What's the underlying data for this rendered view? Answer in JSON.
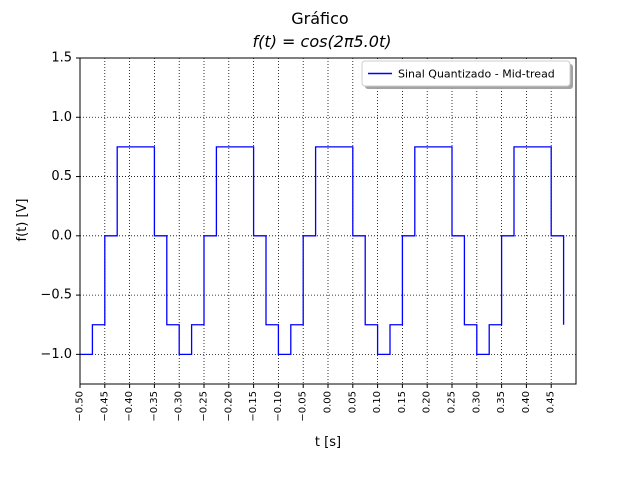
{
  "chart_data": {
    "type": "line",
    "title": "Gráfico",
    "subtitle": "f(t) = cos(2π5.0t)",
    "xlabel": "t [s]",
    "ylabel": "f(t) [V]",
    "xlim": [
      -0.5,
      0.5
    ],
    "ylim": [
      -1.25,
      1.5
    ],
    "grid": true,
    "legend_placement": "top-right",
    "xticks": [
      -0.5,
      -0.45,
      -0.4,
      -0.35,
      -0.3,
      -0.25,
      -0.2,
      -0.15,
      -0.1,
      -0.05,
      0.0,
      0.05,
      0.1,
      0.15,
      0.2,
      0.25,
      0.3,
      0.35,
      0.4,
      0.45
    ],
    "xtick_labels": [
      "−0.50",
      "−0.45",
      "−0.40",
      "−0.35",
      "−0.30",
      "−0.25",
      "−0.20",
      "−0.15",
      "−0.10",
      "−0.05",
      "0.00",
      "0.05",
      "0.10",
      "0.15",
      "0.20",
      "0.25",
      "0.30",
      "0.35",
      "0.40",
      "0.45"
    ],
    "yticks": [
      -1.0,
      -0.5,
      0.0,
      0.5,
      1.0,
      1.5
    ],
    "ytick_labels": [
      "−1.0",
      "−0.5",
      "0.0",
      "0.5",
      "1.0",
      "1.5"
    ],
    "series": [
      {
        "name": "Sinal Quantizado - Mid-tread",
        "color": "#0000ff",
        "step": "post",
        "x": [
          -0.5,
          -0.475,
          -0.45,
          -0.425,
          -0.35,
          -0.325,
          -0.3,
          -0.275,
          -0.25,
          -0.225,
          -0.15,
          -0.125,
          -0.1,
          -0.075,
          -0.05,
          -0.025,
          0.05,
          0.075,
          0.1,
          0.125,
          0.15,
          0.175,
          0.25,
          0.275,
          0.3,
          0.325,
          0.35,
          0.375,
          0.45,
          0.475
        ],
        "y": [
          -1.0,
          -0.75,
          0.0,
          0.75,
          0.0,
          -0.75,
          -1.0,
          -0.75,
          0.0,
          0.75,
          0.0,
          -0.75,
          -1.0,
          -0.75,
          0.0,
          0.75,
          0.0,
          -0.75,
          -1.0,
          -0.75,
          0.0,
          0.75,
          0.0,
          -0.75,
          -1.0,
          -0.75,
          0.0,
          0.75,
          0.0,
          -0.75
        ]
      }
    ],
    "colors": {
      "line": "#0000ff",
      "grid": "#000000",
      "axes": "#000000"
    }
  }
}
